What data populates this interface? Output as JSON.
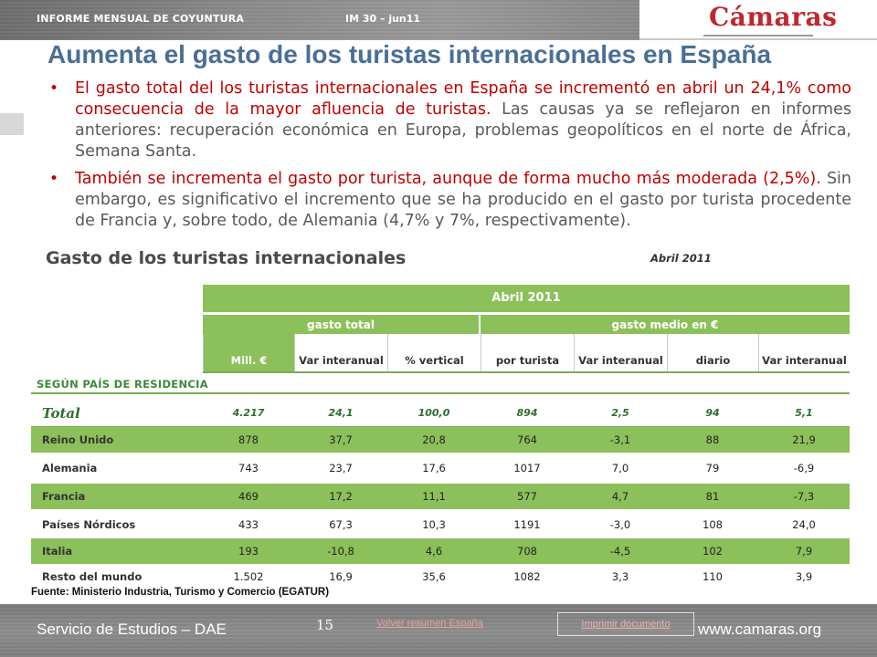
{
  "header": {
    "left": "INFORME MENSUAL DE COYUNTURA",
    "issue": "IM 30 – jun11",
    "logo": "Cámaras"
  },
  "title": "Aumenta el gasto de los turistas internacionales en España",
  "bullets": [
    {
      "highlight": "El gasto total del los turistas internacionales en España se incrementó en abril un 24,1% como consecuencia de la mayor afluencia de turistas.",
      "rest": " Las causas ya se reflejaron en informes anteriores: recuperación económica en Europa, problemas geopolíticos en el norte de África, Semana Santa."
    },
    {
      "highlight": "También se incrementa el gasto por turista, aunque de forma mucho más moderada (2,5%).",
      "rest": " Sin embargo, es significativo el incremento que se ha producido en el gasto por turista procedente de Francia y, sobre todo, de Alemania (4,7% y 7%, respectivamente)."
    }
  ],
  "table": {
    "title": "Gasto de los turistas internacionales",
    "date": "Abril 2011",
    "top_header": "Abril 2011",
    "group_headers": [
      "gasto total",
      "gasto medio en €"
    ],
    "columns": [
      "Mill. €",
      "Var interanual",
      "% vertical",
      "por turista",
      "Var interanual",
      "diario",
      "Var interanual"
    ],
    "section": "SEGÚN PAÍS DE RESIDENCIA",
    "total": {
      "label": "Total",
      "values": [
        "4.217",
        "24,1",
        "100,0",
        "894",
        "2,5",
        "94",
        "5,1"
      ]
    },
    "rows": [
      {
        "label": "Reino Unido",
        "values": [
          "878",
          "37,7",
          "20,8",
          "764",
          "-3,1",
          "88",
          "21,9"
        ]
      },
      {
        "label": "Alemania",
        "values": [
          "743",
          "23,7",
          "17,6",
          "1017",
          "7,0",
          "79",
          "-6,9"
        ]
      },
      {
        "label": "Francia",
        "values": [
          "469",
          "17,2",
          "11,1",
          "577",
          "4,7",
          "81",
          "-7,3"
        ]
      },
      {
        "label": "Países Nórdicos",
        "values": [
          "433",
          "67,3",
          "10,3",
          "1191",
          "-3,0",
          "108",
          "24,0"
        ]
      },
      {
        "label": "Italia",
        "values": [
          "193",
          "-10,8",
          "4,6",
          "708",
          "-4,5",
          "102",
          "7,9"
        ]
      },
      {
        "label": "Resto del mundo",
        "values": [
          "1.502",
          "16,9",
          "35,6",
          "1082",
          "3,3",
          "110",
          "3,9"
        ]
      }
    ],
    "source": "Fuente: Ministerio Industria, Turismo y Comercio (EGATUR)"
  },
  "footer": {
    "left": "Servicio de Estudios – DAE",
    "page": "15",
    "link": "Volver resumen España",
    "print": "Imprimir documento",
    "www": "www.camaras.org"
  },
  "colors": {
    "accent_red": "#c00000",
    "title_blue": "#4a6f96",
    "table_green": "#8cc05a"
  }
}
